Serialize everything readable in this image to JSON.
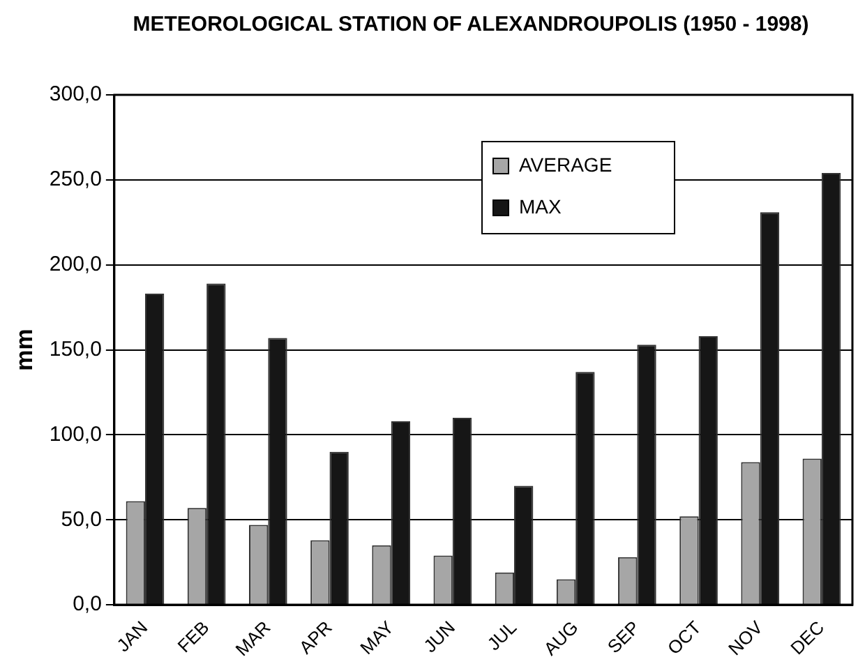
{
  "chart_data": {
    "type": "bar",
    "title": "METEOROLOGICAL STATION OF ALEXANDROUPOLIS (1950 - 1998)",
    "ylabel": "mm",
    "categories": [
      "JAN",
      "FEB",
      "MAR",
      "APR",
      "MAY",
      "JUN",
      "JUL",
      "AUG",
      "SEP",
      "OCT",
      "NOV",
      "DEC"
    ],
    "series": [
      {
        "name": "AVERAGE",
        "color": "#a6a6a6",
        "values": [
          61,
          57,
          47,
          38,
          35,
          29,
          19,
          15,
          28,
          52,
          84,
          86
        ]
      },
      {
        "name": "MAX",
        "color": "#161616",
        "values": [
          183,
          189,
          157,
          90,
          108,
          110,
          70,
          137,
          153,
          158,
          231,
          254
        ]
      }
    ],
    "ylim": [
      0,
      300
    ],
    "yticks": [
      {
        "value": 0,
        "label": "0,0"
      },
      {
        "value": 50,
        "label": "50,0"
      },
      {
        "value": 100,
        "label": "100,0"
      },
      {
        "value": 150,
        "label": "150,0"
      },
      {
        "value": 200,
        "label": "200,0"
      },
      {
        "value": 250,
        "label": "250,0"
      },
      {
        "value": 300,
        "label": "300,0"
      }
    ],
    "grid": "y",
    "legend": "top right"
  }
}
